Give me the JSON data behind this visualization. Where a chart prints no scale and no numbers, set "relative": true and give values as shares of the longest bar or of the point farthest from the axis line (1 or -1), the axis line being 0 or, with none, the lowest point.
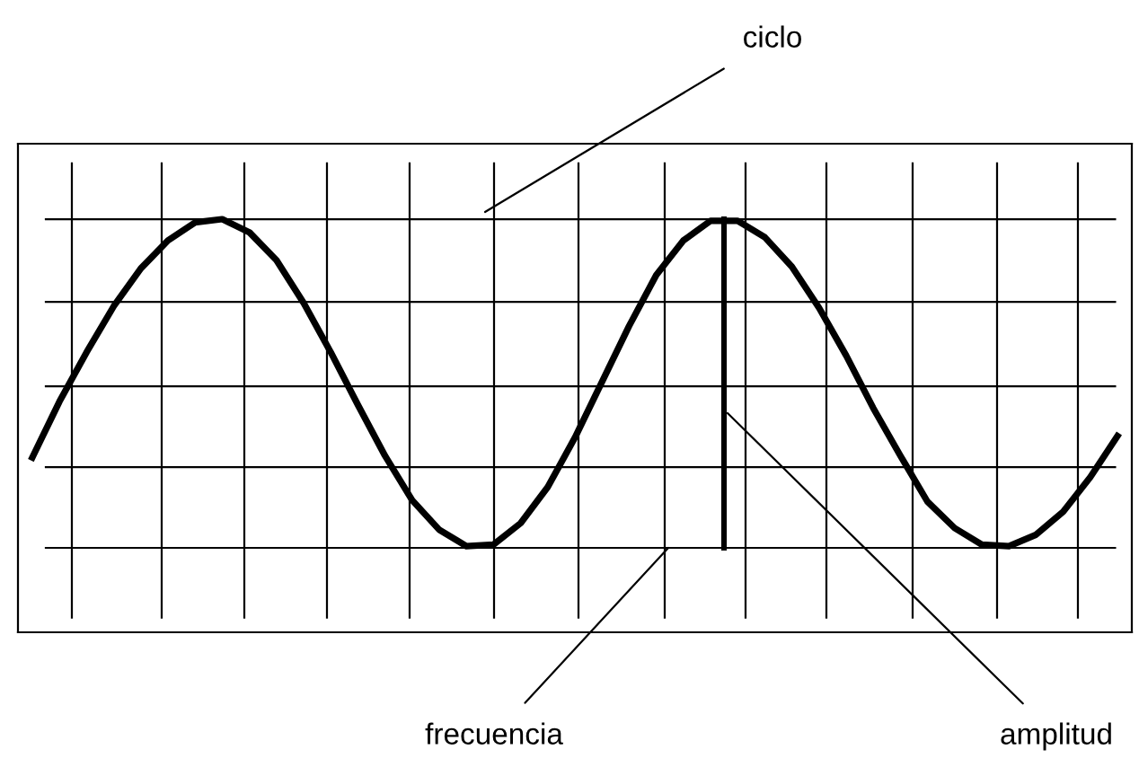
{
  "chart_data": {
    "type": "line",
    "relative": true,
    "grid": true,
    "marker": "none",
    "line_style": "solid",
    "categories": [
      null,
      null,
      null,
      null,
      null,
      null,
      null,
      null,
      null,
      null,
      null,
      null,
      null,
      null,
      null,
      null,
      null,
      null,
      null,
      null,
      null,
      null,
      null,
      null,
      null,
      null,
      null,
      null,
      null,
      null,
      null,
      null,
      null,
      null,
      null,
      null,
      null,
      null,
      null,
      null,
      null
    ],
    "series": [
      {
        "color": "#000000",
        "values": [
          -0.45,
          -0.11,
          0.19,
          0.47,
          0.7,
          0.87,
          0.98,
          1.0,
          0.92,
          0.75,
          0.49,
          0.19,
          -0.13,
          -0.44,
          -0.71,
          -0.89,
          -0.99,
          -0.98,
          -0.85,
          -0.63,
          -0.33,
          0.01,
          0.35,
          0.66,
          0.87,
          0.99,
          0.99,
          0.89,
          0.71,
          0.46,
          0.17,
          -0.15,
          -0.44,
          -0.72,
          -0.88,
          -0.98,
          -0.99,
          -0.92,
          -0.78,
          -0.57,
          -0.32
        ]
      }
    ],
    "annotations": [
      "ciclo",
      "frecuencia",
      "amplitud"
    ]
  }
}
